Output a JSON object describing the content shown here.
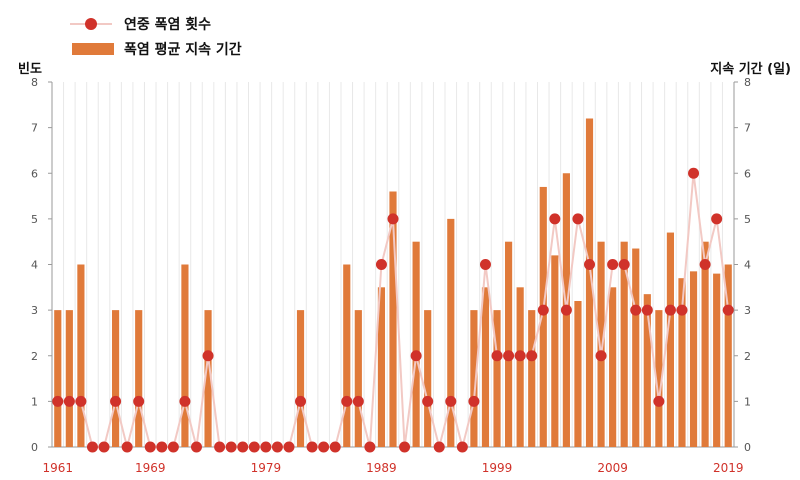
{
  "chart_data": {
    "type": "bar",
    "legend": [
      {
        "name": "연중 폭염 횟수",
        "kind": "line-marker",
        "color": "#d0322a"
      },
      {
        "name": "폭염 평균 지속 기간",
        "kind": "bar",
        "color": "#e07a3a"
      }
    ],
    "left_axis_label": "빈도",
    "right_axis_label": "지속 기간 (일)",
    "ylim": [
      0,
      8
    ],
    "y_ticks": [
      0,
      1,
      2,
      3,
      4,
      5,
      6,
      7,
      8
    ],
    "x_tick_labels": [
      "1961",
      "1969",
      "1979",
      "1989",
      "1999",
      "2009",
      "2019"
    ],
    "grid": "vertical",
    "legend_position": "top-left",
    "colors": {
      "bar": "#e07a3a",
      "marker": "#d0322a",
      "line": "#f2c9c4",
      "grid": "#e8e8e8",
      "xtick": "#d0322a"
    },
    "years": [
      1961,
      1962,
      1963,
      1964,
      1965,
      1966,
      1967,
      1968,
      1969,
      1970,
      1971,
      1972,
      1973,
      1974,
      1975,
      1976,
      1977,
      1978,
      1979,
      1980,
      1981,
      1982,
      1983,
      1984,
      1985,
      1986,
      1987,
      1988,
      1989,
      1990,
      1991,
      1992,
      1993,
      1994,
      1995,
      1996,
      1997,
      1998,
      1999,
      2000,
      2001,
      2002,
      2003,
      2004,
      2005,
      2006,
      2007,
      2008,
      2009,
      2010,
      2011,
      2012,
      2013,
      2014,
      2015,
      2016,
      2017,
      2018,
      2019
    ],
    "series": [
      {
        "name": "폭염 평균 지속 기간",
        "type": "bar",
        "values": [
          3,
          3,
          4,
          0,
          0,
          3,
          0,
          3,
          0,
          0,
          0,
          4,
          0,
          3,
          0,
          0,
          0,
          0,
          0,
          0,
          0,
          3,
          0,
          0,
          0,
          4,
          3,
          0,
          3.5,
          5.6,
          0,
          4.5,
          3,
          0,
          5,
          0,
          3,
          3.5,
          3,
          4.5,
          3.5,
          3,
          5.7,
          4.2,
          6,
          3.2,
          7.2,
          4.5,
          3.5,
          4.5,
          4.35,
          3.35,
          3,
          4.7,
          3.7,
          3.85,
          4.5,
          3.8,
          4
        ]
      },
      {
        "name": "연중 폭염 횟수",
        "type": "line",
        "values": [
          1,
          1,
          1,
          0,
          0,
          1,
          0,
          1,
          0,
          0,
          0,
          1,
          0,
          2,
          0,
          0,
          0,
          0,
          0,
          0,
          0,
          1,
          0,
          0,
          0,
          1,
          1,
          0,
          4,
          5,
          0,
          2,
          1,
          0,
          1,
          0,
          1,
          4,
          2,
          2,
          2,
          2,
          3,
          5,
          3,
          5,
          4,
          2,
          4,
          4,
          3,
          3,
          1,
          3,
          3,
          6,
          4,
          5,
          3
        ]
      }
    ]
  }
}
